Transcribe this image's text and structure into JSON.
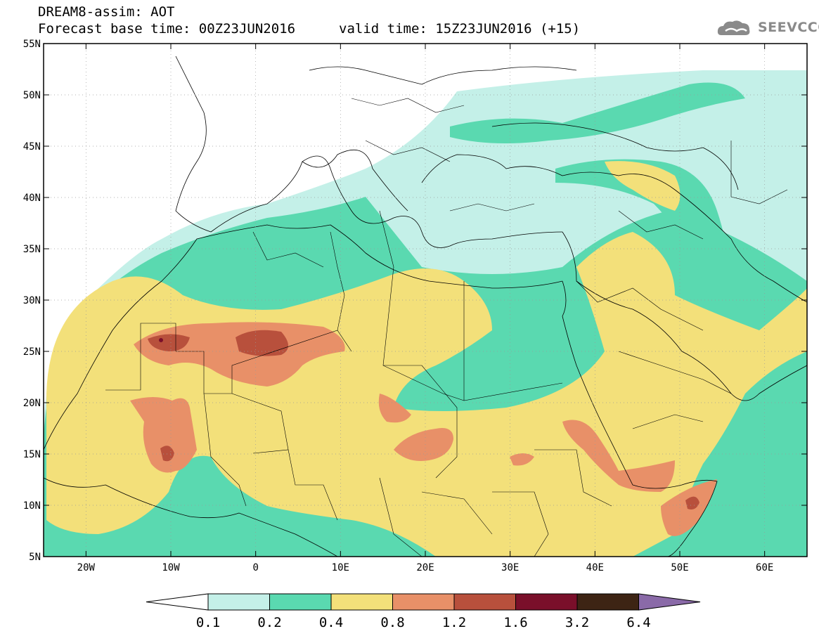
{
  "header": {
    "title": "DREAM8-assim: AOT",
    "base_time": "Forecast base time: 00Z23JUN2016",
    "valid_time": "valid time: 15Z23JUN2016 (+15)"
  },
  "logo": {
    "text": "SEEVCCC",
    "icon": "cloud-logo-icon"
  },
  "map": {
    "lon_range": [
      -25,
      65
    ],
    "lat_range": [
      5,
      55
    ],
    "lon_ticks": [
      {
        "value": -20,
        "label": "20W"
      },
      {
        "value": -10,
        "label": "10W"
      },
      {
        "value": 0,
        "label": "0"
      },
      {
        "value": 10,
        "label": "10E"
      },
      {
        "value": 20,
        "label": "20E"
      },
      {
        "value": 30,
        "label": "30E"
      },
      {
        "value": 40,
        "label": "40E"
      },
      {
        "value": 50,
        "label": "50E"
      },
      {
        "value": 60,
        "label": "60E"
      }
    ],
    "lat_ticks": [
      {
        "value": 55,
        "label": "55N"
      },
      {
        "value": 50,
        "label": "50N"
      },
      {
        "value": 45,
        "label": "45N"
      },
      {
        "value": 40,
        "label": "40N"
      },
      {
        "value": 35,
        "label": "35N"
      },
      {
        "value": 30,
        "label": "30N"
      },
      {
        "value": 25,
        "label": "25N"
      },
      {
        "value": 20,
        "label": "20N"
      },
      {
        "value": 15,
        "label": "15N"
      },
      {
        "value": 10,
        "label": "10N"
      },
      {
        "value": 5,
        "label": "5N"
      }
    ],
    "grid": true
  },
  "colorbar": {
    "colors": [
      "#ffffff",
      "#c4f0e8",
      "#5ad9b0",
      "#f3e07a",
      "#e89068",
      "#b8503c",
      "#7a0f2a",
      "#3d2414",
      "#8a6aa8"
    ],
    "labels": [
      "0.1",
      "0.2",
      "0.4",
      "0.8",
      "1.2",
      "1.6",
      "3.2",
      "6.4"
    ]
  }
}
